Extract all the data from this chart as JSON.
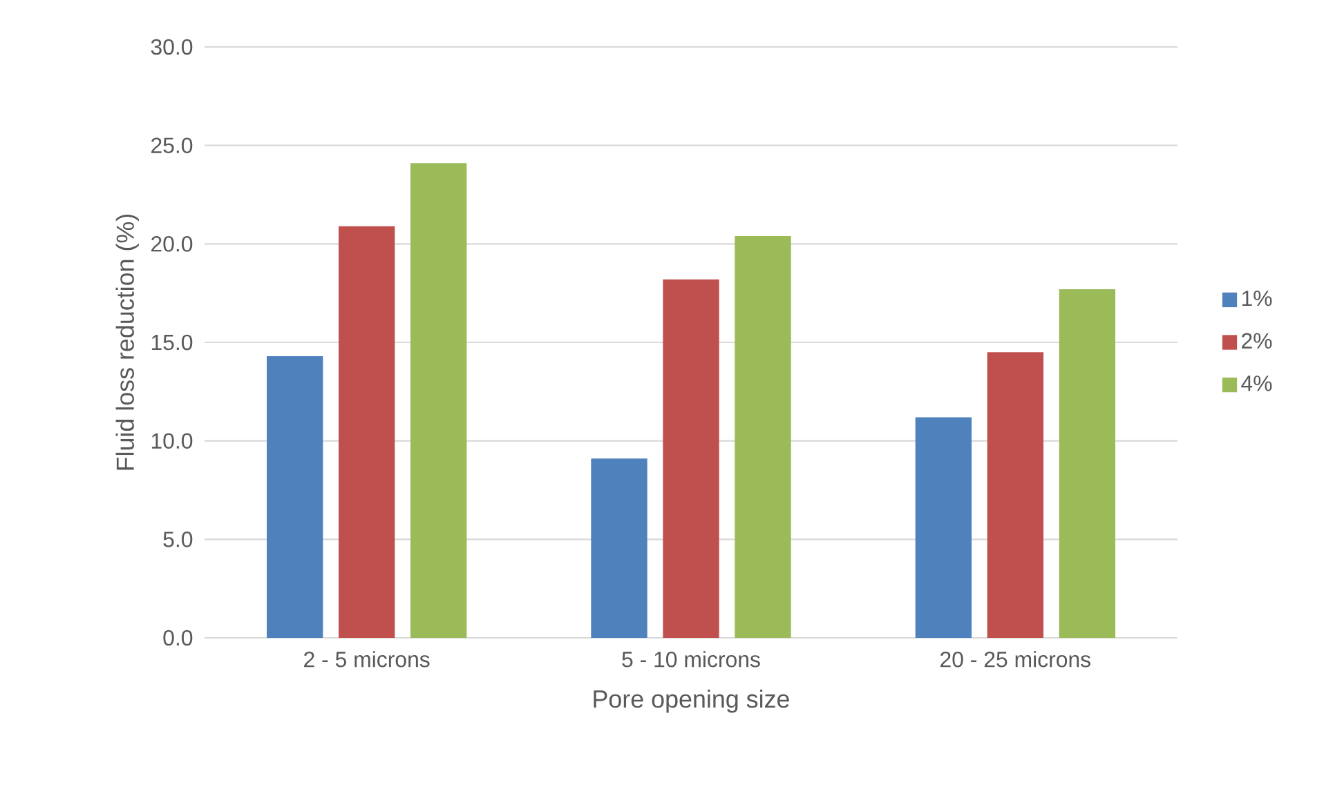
{
  "chart_data": {
    "type": "bar",
    "xlabel": "Pore opening size",
    "ylabel": "Fluid loss reduction (%)",
    "categories": [
      "2 - 5 microns",
      "5 - 10 microns",
      "20 - 25 microns"
    ],
    "series": [
      {
        "name": "1%",
        "color": "#4f81bd",
        "values": [
          14.3,
          9.1,
          11.2
        ]
      },
      {
        "name": "2%",
        "color": "#c0504d",
        "values": [
          20.9,
          18.2,
          14.5
        ]
      },
      {
        "name": "4%",
        "color": "#9bbb59",
        "values": [
          24.1,
          20.4,
          17.7
        ]
      }
    ],
    "ylim": [
      0,
      30
    ],
    "yticks": [
      {
        "value": 0,
        "label": "0.0"
      },
      {
        "value": 5,
        "label": "5.0"
      },
      {
        "value": 10,
        "label": "10.0"
      },
      {
        "value": 15,
        "label": "15.0"
      },
      {
        "value": 20,
        "label": "20.0"
      },
      {
        "value": 25,
        "label": "25.0"
      },
      {
        "value": 30,
        "label": "30.0"
      }
    ],
    "grid": "y",
    "legend": "right"
  }
}
